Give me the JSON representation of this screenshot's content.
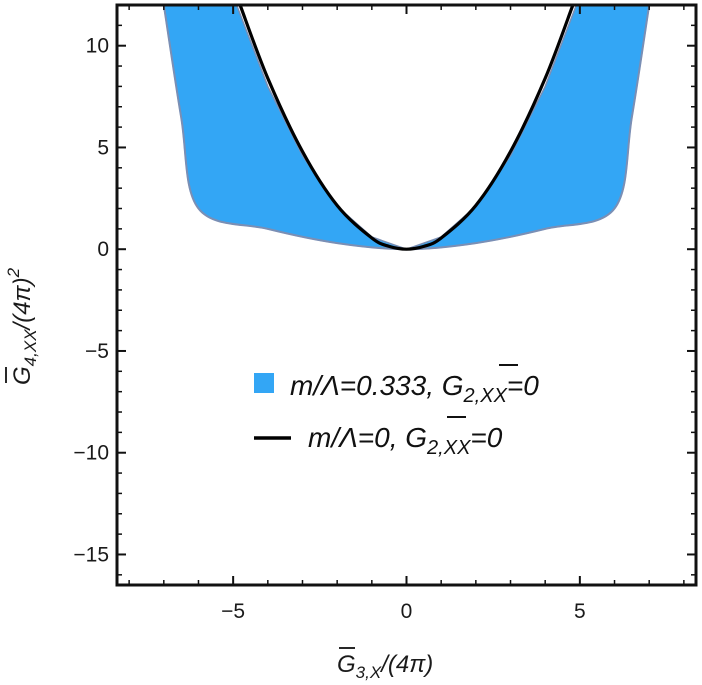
{
  "chart_data": {
    "type": "area",
    "xlim": [
      -8.35,
      8.35
    ],
    "ylim": [
      -16.5,
      12.0
    ],
    "x_ticks": [
      -5,
      0,
      5
    ],
    "y_ticks": [
      10,
      5,
      0,
      -5,
      -10,
      -15
    ],
    "x_tick_labels": [
      "−5",
      "0",
      "5"
    ],
    "y_tick_labels": [
      "10",
      "5",
      "0",
      "−5",
      "−10",
      "−15"
    ],
    "xlabel": {
      "main": "G",
      "sub": "3,X",
      "rest": "/(4π)"
    },
    "ylabel": {
      "main": "G",
      "sub": "4,XX",
      "rest": "/(4π)",
      "sup": "2"
    },
    "grid": false,
    "legend_position": "center",
    "series": [
      {
        "kind": "band",
        "color": "#33a6f5",
        "edge_color": "#7a8fb5",
        "legend": {
          "a": "m/Λ=0.333, ",
          "g": "G",
          "sub": "2,XX",
          "eq": "=0"
        },
        "upper": [
          {
            "x": -7.0,
            "y": 12.0
          },
          {
            "x": -6.0,
            "y": 10.3
          },
          {
            "x": -5.0,
            "y": 8.3
          },
          {
            "x": -4.0,
            "y": 6.2
          },
          {
            "x": -3.0,
            "y": 4.3
          },
          {
            "x": -2.0,
            "y": 2.6
          },
          {
            "x": -1.0,
            "y": 1.0
          },
          {
            "x": 0.0,
            "y": 0.0
          },
          {
            "x": 1.0,
            "y": 1.0
          },
          {
            "x": 2.0,
            "y": 2.6
          },
          {
            "x": 3.0,
            "y": 4.3
          },
          {
            "x": 4.0,
            "y": 6.2
          },
          {
            "x": 5.0,
            "y": 8.3
          },
          {
            "x": 6.0,
            "y": 10.3
          },
          {
            "x": 7.0,
            "y": 12.0
          }
        ],
        "lower": [
          {
            "x": -4.9,
            "y": 12.0
          },
          {
            "x": -4.0,
            "y": 8.0
          },
          {
            "x": -3.0,
            "y": 4.6
          },
          {
            "x": -2.0,
            "y": 2.1
          },
          {
            "x": -1.0,
            "y": 0.6
          },
          {
            "x": 0.0,
            "y": 0.0
          },
          {
            "x": 1.0,
            "y": 0.6
          },
          {
            "x": 2.0,
            "y": 2.1
          },
          {
            "x": 3.0,
            "y": 4.6
          },
          {
            "x": 4.0,
            "y": 8.0
          },
          {
            "x": 4.9,
            "y": 12.0
          }
        ],
        "outer_lower": [
          {
            "x": -7.0,
            "y": 12.0
          },
          {
            "x": -6.5,
            "y": 6.5
          },
          {
            "x": -6.0,
            "y": 2.0
          },
          {
            "x": -4.0,
            "y": 1.0
          },
          {
            "x": -2.0,
            "y": 0.3
          },
          {
            "x": 0.0,
            "y": 0.0
          },
          {
            "x": 2.0,
            "y": 0.3
          },
          {
            "x": 4.0,
            "y": 1.0
          },
          {
            "x": 6.0,
            "y": 2.0
          },
          {
            "x": 6.5,
            "y": 6.5
          },
          {
            "x": 7.0,
            "y": 12.0
          }
        ]
      },
      {
        "kind": "line",
        "color": "#000000",
        "legend": {
          "a": "m/Λ=0, ",
          "g": "G",
          "sub": "2,XX",
          "eq": "=0"
        },
        "points": [
          {
            "x": -4.8,
            "y": 12.0
          },
          {
            "x": -4.0,
            "y": 8.4
          },
          {
            "x": -3.0,
            "y": 4.8
          },
          {
            "x": -2.0,
            "y": 2.15
          },
          {
            "x": -1.0,
            "y": 0.55
          },
          {
            "x": -0.5,
            "y": 0.14
          },
          {
            "x": 0.0,
            "y": 0.0
          },
          {
            "x": 0.5,
            "y": 0.14
          },
          {
            "x": 1.0,
            "y": 0.55
          },
          {
            "x": 2.0,
            "y": 2.15
          },
          {
            "x": 3.0,
            "y": 4.8
          },
          {
            "x": 4.0,
            "y": 8.4
          },
          {
            "x": 4.8,
            "y": 12.0
          }
        ]
      }
    ]
  }
}
